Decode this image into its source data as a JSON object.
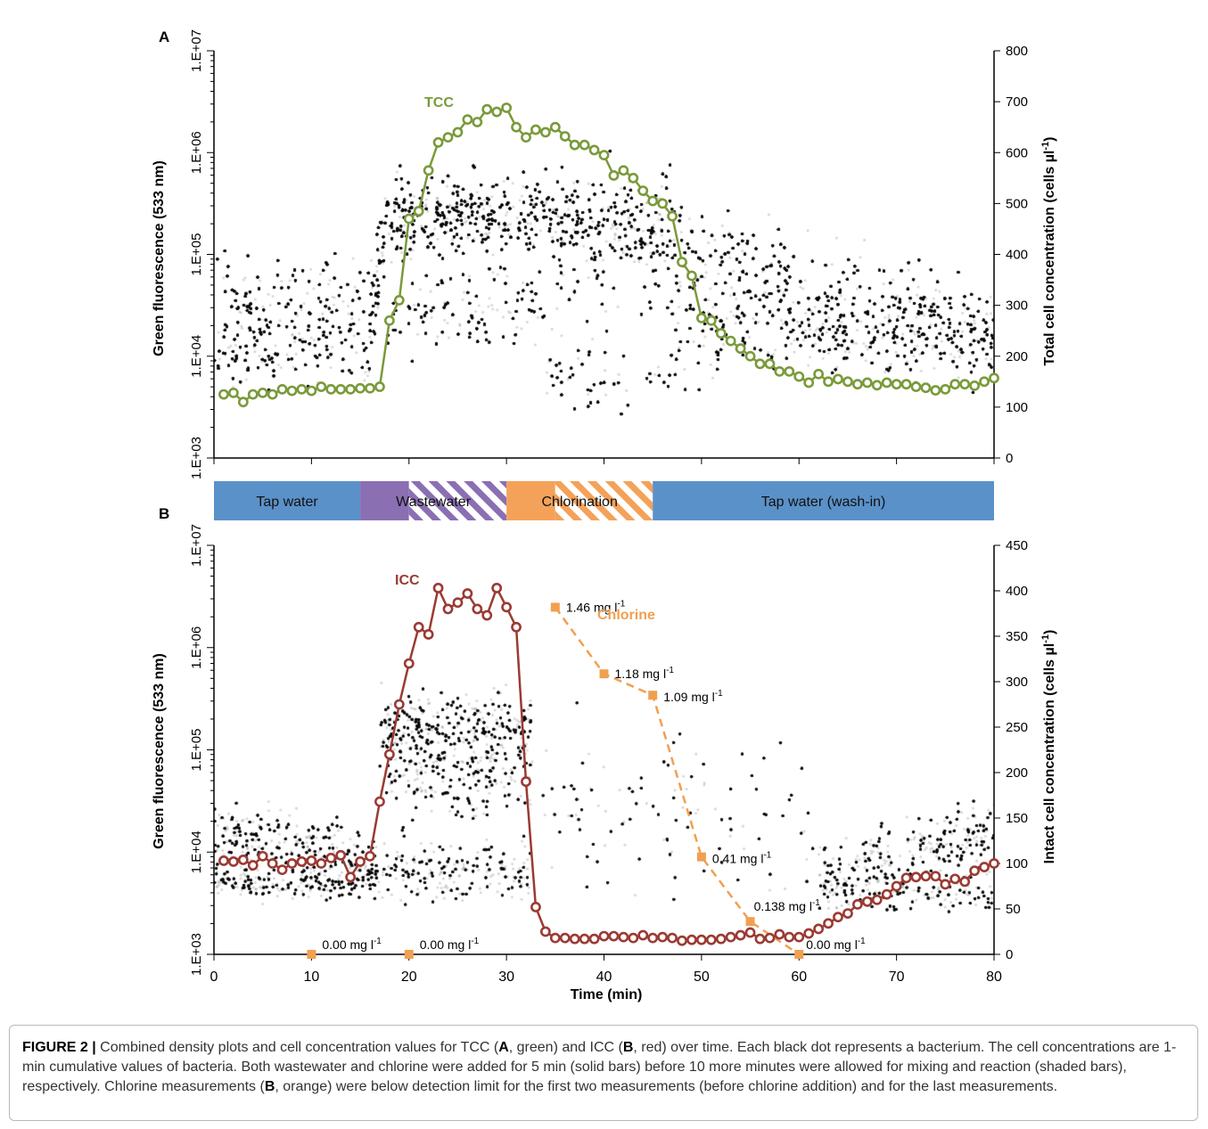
{
  "panels": {
    "a": {
      "letter": "A",
      "left_axis_label": "Green fluorescence (533 nm)",
      "right_axis_label": "Total cell concentration (cells µl",
      "right_axis_unit_sup": "-1",
      "right_axis_close": ")",
      "series_label": "TCC",
      "series_color": "#7a9a3a"
    },
    "b": {
      "letter": "B",
      "left_axis_label": "Green fluorescence (533 nm)",
      "right_axis_label": "Intact cell concentration (cells µl",
      "right_axis_unit_sup": "-1",
      "right_axis_close": ")",
      "series_label": "ICC",
      "series_color": "#9b3a33",
      "chlorine_label": "Chlorine",
      "chlorine_color": "#f0a050",
      "x_axis_label": "Time (min)"
    }
  },
  "phase_bar": [
    {
      "label": "Tap water",
      "start": 0,
      "solid_end": 15,
      "end": 15,
      "color": "#5b91c9"
    },
    {
      "label": "Wastewater",
      "start": 15,
      "solid_end": 20,
      "end": 30,
      "color": "#8a6fb3"
    },
    {
      "label": "Chlorination",
      "start": 30,
      "solid_end": 35,
      "end": 45,
      "color": "#f4a259"
    },
    {
      "label": "Tap water (wash-in)",
      "start": 45,
      "solid_end": 80,
      "end": 80,
      "color": "#5b91c9"
    }
  ],
  "chart_data": [
    {
      "type": "scatter",
      "panel": "A",
      "description_series": "TCC line with circle markers over density scatter",
      "x_ticks": [
        "0",
        "10",
        "20",
        "30",
        "40",
        "50",
        "60",
        "70",
        "80"
      ],
      "xlim": [
        0,
        80
      ],
      "left_ticks": [
        "1.E+03",
        "1.E+04",
        "1.E+05",
        "1.E+06",
        "1.E+07"
      ],
      "left_scale": "log",
      "right_ticks": [
        "0",
        "100",
        "200",
        "300",
        "400",
        "500",
        "600",
        "700",
        "800"
      ],
      "ylim_right": [
        0,
        800
      ],
      "series": [
        {
          "name": "TCC",
          "x": [
            1,
            2,
            3,
            4,
            5,
            6,
            7,
            8,
            9,
            10,
            11,
            12,
            13,
            14,
            15,
            16,
            17,
            18,
            19,
            20,
            21,
            22,
            23,
            24,
            25,
            26,
            27,
            28,
            29,
            30,
            31,
            32,
            33,
            34,
            35,
            36,
            37,
            38,
            39,
            40,
            41,
            42,
            43,
            44,
            45,
            46,
            47,
            48,
            49,
            50,
            51,
            52,
            53,
            54,
            55,
            56,
            57,
            58,
            59,
            60,
            61,
            62,
            63,
            64,
            65,
            66,
            67,
            68,
            69,
            70,
            71,
            72,
            73,
            74,
            75,
            76,
            77,
            78,
            79,
            80
          ],
          "values": [
            125,
            128,
            110,
            125,
            128,
            125,
            135,
            132,
            135,
            132,
            140,
            135,
            135,
            135,
            137,
            137,
            140,
            270,
            310,
            470,
            485,
            565,
            620,
            630,
            640,
            665,
            660,
            685,
            680,
            688,
            650,
            630,
            645,
            640,
            650,
            632,
            615,
            615,
            605,
            595,
            555,
            565,
            550,
            525,
            505,
            500,
            475,
            385,
            358,
            275,
            270,
            245,
            230,
            215,
            200,
            185,
            185,
            170,
            170,
            160,
            148,
            165,
            150,
            155,
            150,
            145,
            148,
            143,
            148,
            145,
            145,
            140,
            138,
            133,
            135,
            145,
            145,
            142,
            150,
            157
          ]
        }
      ]
    },
    {
      "type": "scatter",
      "panel": "B",
      "x_ticks": [
        "0",
        "10",
        "20",
        "30",
        "40",
        "50",
        "60",
        "70",
        "80"
      ],
      "xlim": [
        0,
        80
      ],
      "xlabel": "Time (min)",
      "left_ticks": [
        "1.E+03",
        "1.E+04",
        "1.E+05",
        "1.E+06",
        "1.E+07"
      ],
      "left_scale": "log",
      "right_ticks": [
        "0",
        "50",
        "100",
        "150",
        "200",
        "250",
        "300",
        "350",
        "400",
        "450"
      ],
      "ylim_right": [
        0,
        450
      ],
      "series": [
        {
          "name": "ICC",
          "x": [
            1,
            2,
            3,
            4,
            5,
            6,
            7,
            8,
            9,
            10,
            11,
            12,
            13,
            14,
            15,
            16,
            17,
            18,
            19,
            20,
            21,
            22,
            23,
            24,
            25,
            26,
            27,
            28,
            29,
            30,
            31,
            32,
            33,
            34,
            35,
            36,
            37,
            38,
            39,
            40,
            41,
            42,
            43,
            44,
            45,
            46,
            47,
            48,
            49,
            50,
            51,
            52,
            53,
            54,
            55,
            56,
            57,
            58,
            59,
            60,
            61,
            62,
            63,
            64,
            65,
            66,
            67,
            68,
            69,
            70,
            71,
            72,
            73,
            74,
            75,
            76,
            77,
            78,
            79,
            80
          ],
          "values": [
            103,
            102,
            104,
            98,
            108,
            100,
            93,
            100,
            102,
            103,
            100,
            106,
            109,
            85,
            102,
            108,
            168,
            220,
            275,
            320,
            360,
            352,
            403,
            380,
            387,
            397,
            380,
            373,
            403,
            382,
            360,
            190,
            52,
            25,
            18,
            18,
            17,
            17,
            17,
            20,
            20,
            19,
            18,
            21,
            18,
            19,
            18,
            15,
            16,
            16,
            16,
            17,
            19,
            21,
            24,
            17,
            18,
            22,
            19,
            19,
            23,
            28,
            34,
            41,
            45,
            55,
            58,
            60,
            66,
            75,
            84,
            85,
            86,
            86,
            77,
            83,
            80,
            92,
            96,
            100
          ]
        },
        {
          "name": "Chlorine",
          "x": [
            10,
            20,
            35,
            40,
            45,
            50,
            55,
            60
          ],
          "values": [
            0.0,
            0.0,
            1.46,
            1.18,
            1.09,
            0.41,
            0.138,
            0.0
          ],
          "labels": [
            "0.00 mg l",
            "0.00 mg l",
            "1.46 mg l",
            "1.18 mg l",
            "1.09 mg l",
            "0.41 mg l",
            "0.138 mg l",
            "0.00 mg l"
          ],
          "label_sup": "-1"
        }
      ]
    }
  ],
  "caption": {
    "label": "FIGURE 2 |",
    "parts": [
      {
        "t": " Combined density plots and cell concentration values for TCC ("
      },
      {
        "t": "A",
        "b": true
      },
      {
        "t": ", green) and ICC ("
      },
      {
        "t": "B",
        "b": true
      },
      {
        "t": ", red) over time. Each black dot represents a bacterium. The cell concentrations are 1-min cumulative values of bacteria. Both wastewater and chlorine were added for 5 min (solid bars) before 10 more minutes were allowed for mixing and reaction (shaded bars), respectively. Chlorine measurements ("
      },
      {
        "t": "B",
        "b": true
      },
      {
        "t": ", orange) were below detection limit for the first two measurements (before chlorine addition) and for the last measurements."
      }
    ]
  }
}
